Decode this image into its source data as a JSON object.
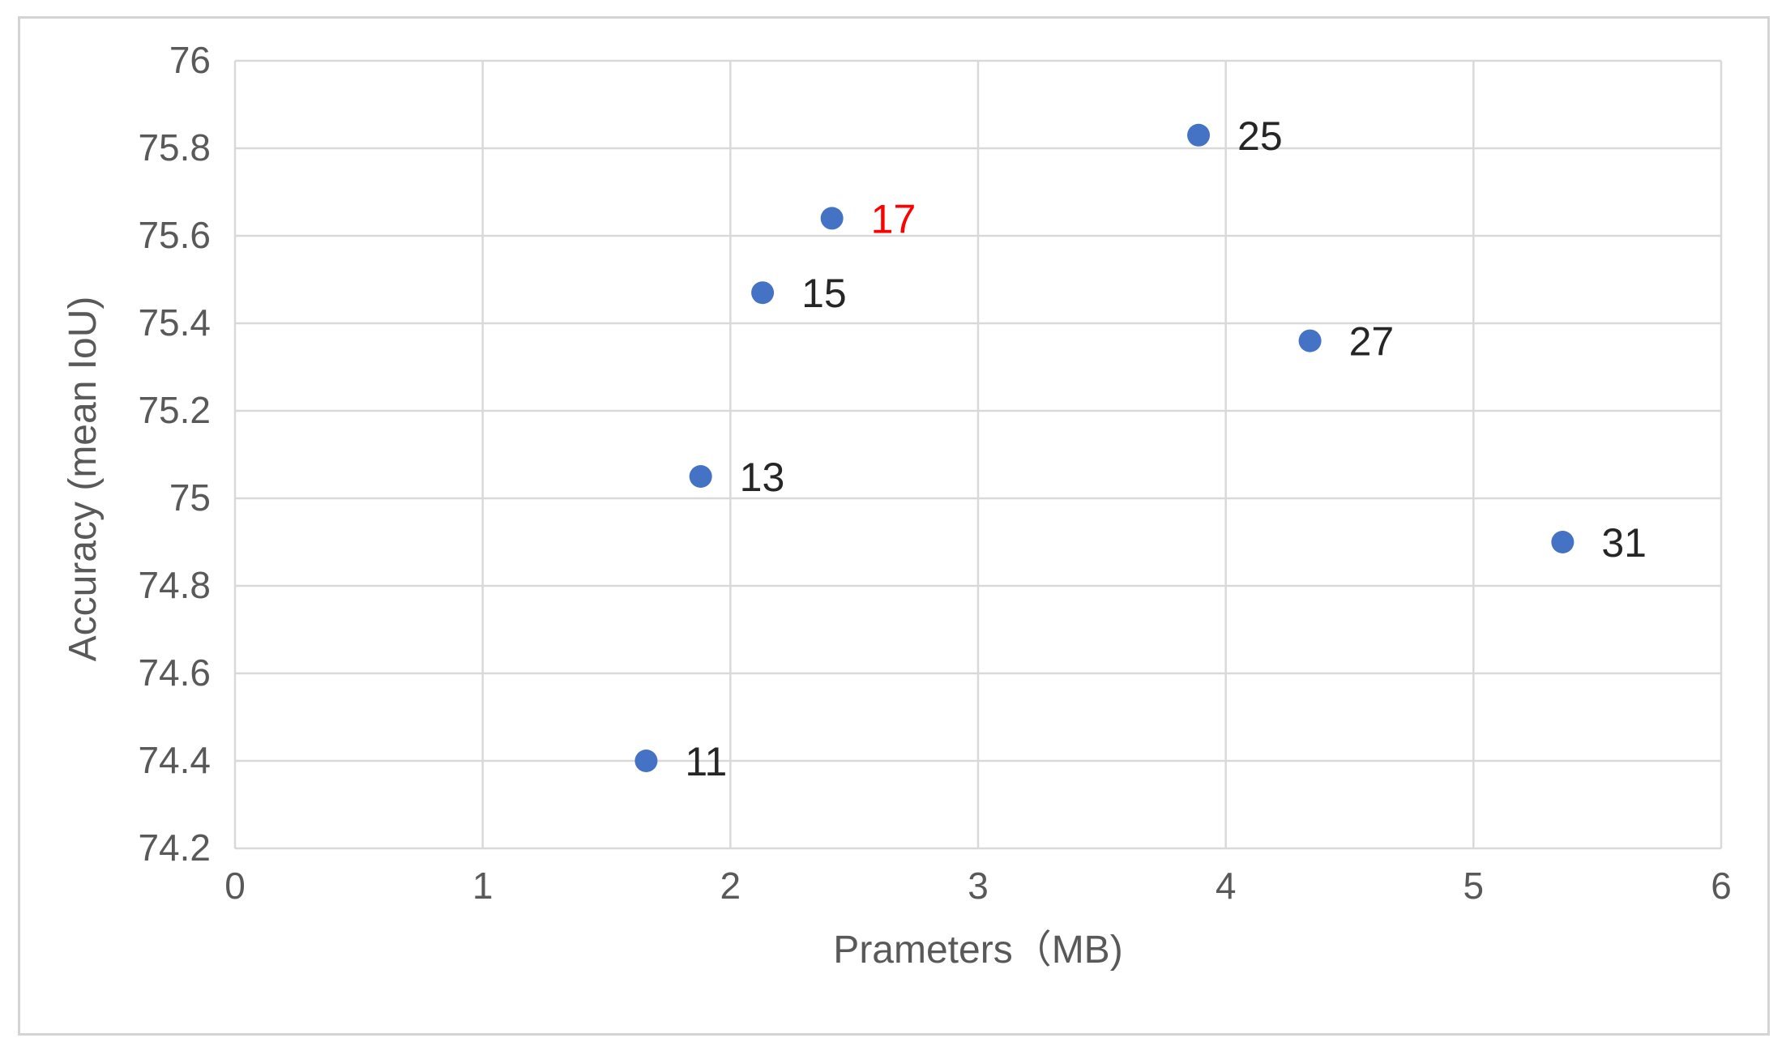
{
  "chart_data": {
    "type": "scatter",
    "title": "",
    "xlabel": "Prameters（MB)",
    "ylabel": "Accuracy (mean IoU)",
    "xlim": [
      0,
      6
    ],
    "ylim": [
      74.2,
      76
    ],
    "x_ticks": [
      "0",
      "1",
      "2",
      "3",
      "4",
      "5",
      "6"
    ],
    "y_ticks": [
      "74.2",
      "74.4",
      "74.6",
      "74.8",
      "75",
      "75.2",
      "75.4",
      "75.6",
      "75.8",
      "76"
    ],
    "grid": true,
    "legend": "none",
    "marker_color": "#4472C4",
    "grid_color": "#d9d9d9",
    "axis_text_color": "#595959",
    "points": [
      {
        "x": 1.66,
        "y": 74.4,
        "label": "11",
        "label_color": "#262626"
      },
      {
        "x": 1.88,
        "y": 75.05,
        "label": "13",
        "label_color": "#262626"
      },
      {
        "x": 2.13,
        "y": 75.47,
        "label": "15",
        "label_color": "#262626"
      },
      {
        "x": 2.41,
        "y": 75.64,
        "label": "17",
        "label_color": "#ff0000"
      },
      {
        "x": 3.89,
        "y": 75.83,
        "label": "25",
        "label_color": "#262626"
      },
      {
        "x": 4.34,
        "y": 75.36,
        "label": "27",
        "label_color": "#262626"
      },
      {
        "x": 5.36,
        "y": 74.9,
        "label": "31",
        "label_color": "#262626"
      }
    ]
  }
}
